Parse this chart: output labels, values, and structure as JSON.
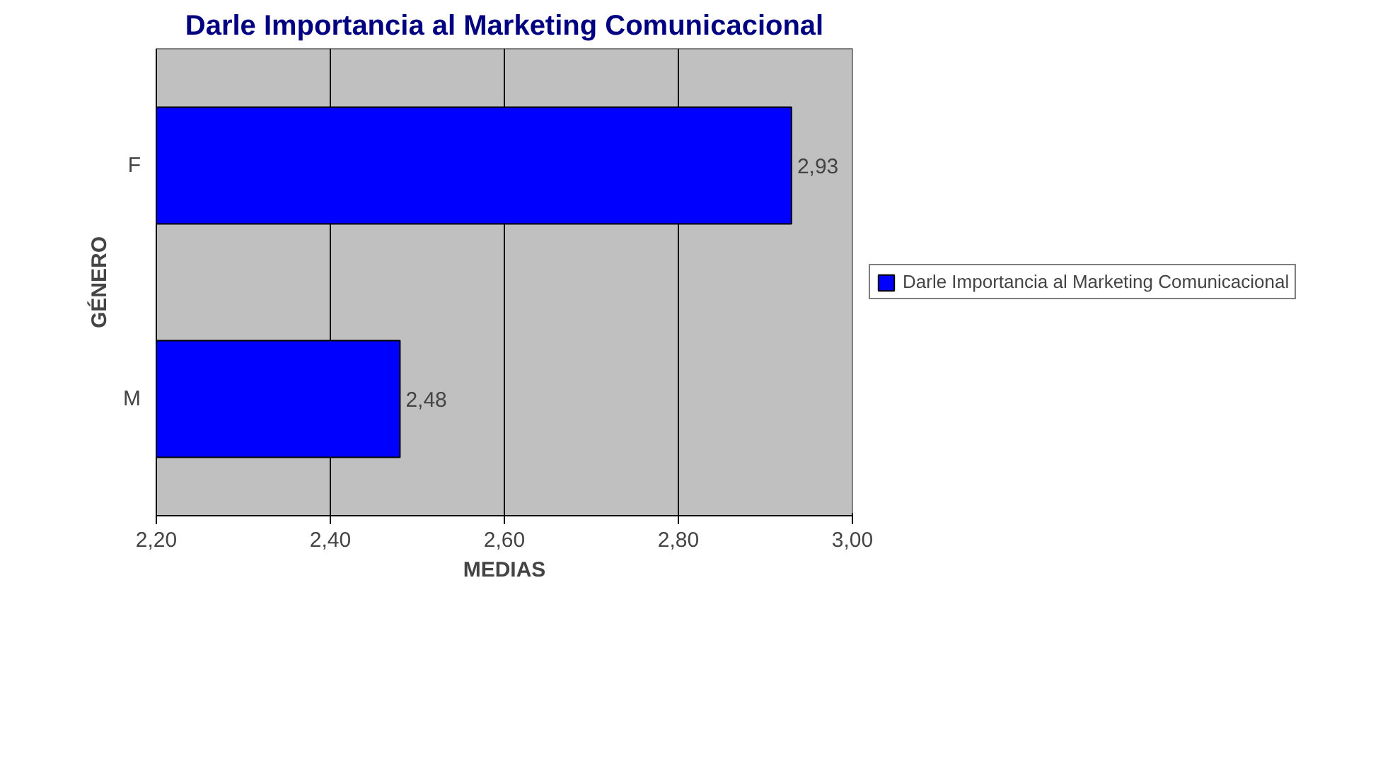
{
  "chart_data": {
    "type": "bar",
    "orientation": "horizontal",
    "title": "Darle Importancia al Marketing Comunicacional",
    "xlabel": "MEDIAS",
    "ylabel": "GÉNERO",
    "categories": [
      "F",
      "M"
    ],
    "series": [
      {
        "name": "Darle Importancia al Marketing Comunicacional",
        "color": "#0000ff",
        "values": [
          2.93,
          2.48
        ],
        "value_labels": [
          "2,93",
          "2,48"
        ]
      }
    ],
    "xlim": [
      2.2,
      3.0
    ],
    "xticks": [
      {
        "value": 2.2,
        "label": "2,20"
      },
      {
        "value": 2.4,
        "label": "2,40"
      },
      {
        "value": 2.6,
        "label": "2,60"
      },
      {
        "value": 2.8,
        "label": "2,80"
      },
      {
        "value": 3.0,
        "label": "3,00"
      }
    ],
    "grid": "x",
    "legend": "right"
  }
}
